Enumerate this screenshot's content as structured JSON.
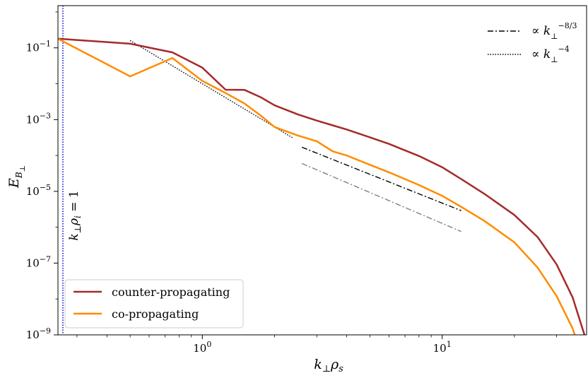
{
  "chart_data": {
    "type": "line",
    "title": "",
    "xlabel": "k⊥ρs",
    "ylabel": "E_B⊥",
    "x_scale": "log",
    "y_scale": "log",
    "xlim": [
      0.25,
      40
    ],
    "ylim": [
      1e-09,
      1.5
    ],
    "x_ticks": [
      {
        "value": 1,
        "label": "10^0"
      },
      {
        "value": 10,
        "label": "10^1"
      }
    ],
    "y_ticks": [
      {
        "value": 0.1,
        "label": "10^-1"
      },
      {
        "value": 0.001,
        "label": "10^-3"
      },
      {
        "value": 1e-05,
        "label": "10^-5"
      },
      {
        "value": 1e-07,
        "label": "10^-7"
      },
      {
        "value": 1e-09,
        "label": "10^-9"
      }
    ],
    "grid": false,
    "series": [
      {
        "name": "counter-propagating",
        "color": "#a52a2a",
        "style": "solid",
        "x": [
          0.25,
          0.5,
          0.75,
          1.0,
          1.25,
          1.5,
          1.75,
          2.0,
          2.5,
          3.0,
          3.5,
          4.0,
          5.0,
          6.0,
          8.0,
          10.0,
          12.0,
          15.0,
          20.0,
          25.0,
          30.0,
          35.0,
          40.0
        ],
        "y": [
          0.18,
          0.13,
          0.075,
          0.028,
          0.0068,
          0.0067,
          0.0042,
          0.0025,
          0.0014,
          0.00094,
          0.00069,
          0.00053,
          0.00032,
          0.00021,
          9.7e-05,
          4.7e-05,
          2.2e-05,
          8.5e-06,
          2.2e-06,
          5.3e-07,
          9.2e-08,
          1.1e-08,
          6.5e-10
        ]
      },
      {
        "name": "co-propagating",
        "color": "#ff8c00",
        "style": "solid",
        "x": [
          0.25,
          0.5,
          0.75,
          1.0,
          1.25,
          1.5,
          1.75,
          2.0,
          2.5,
          3.0,
          3.5,
          4.0,
          5.0,
          6.0,
          8.0,
          10.0,
          12.0,
          15.0,
          20.0,
          25.0,
          30.0,
          35.0,
          40.0
        ],
        "y": [
          0.18,
          0.016,
          0.052,
          0.012,
          0.0055,
          0.0028,
          0.0013,
          0.00062,
          0.00036,
          0.00025,
          0.00013,
          0.0001,
          5.5e-05,
          3.4e-05,
          1.5e-05,
          7.5e-06,
          3.7e-06,
          1.5e-06,
          3.8e-07,
          7.5e-08,
          1.2e-08,
          1.5e-09,
          1e-10
        ]
      }
    ],
    "guides": [
      {
        "label": "∝ k⊥^-8/3",
        "color": "#000000",
        "style": "dashdot",
        "x": [
          2.6,
          12.0
        ],
        "y": [
          0.00017,
          2.9e-06
        ]
      },
      {
        "label": "",
        "color": "#808080",
        "style": "dashdot",
        "x": [
          2.6,
          12.0
        ],
        "y": [
          6e-05,
          7.6e-07
        ]
      },
      {
        "label": "∝ k⊥^-4",
        "color": "#000000",
        "style": "dotted",
        "x": [
          0.5,
          2.4
        ],
        "y": [
          0.16,
          0.0003
        ]
      }
    ],
    "vline": {
      "x": 0.25,
      "color": "#0000cc",
      "style": "dotted",
      "label": "k⊥ρi = 1"
    },
    "legend": {
      "placement": "lower-left",
      "entries": [
        "counter-propagating",
        "co-propagating"
      ]
    },
    "guide_legend": {
      "placement": "top-right",
      "entries": [
        "∝ k⊥^-8/3",
        "∝ k⊥^-4"
      ]
    }
  }
}
